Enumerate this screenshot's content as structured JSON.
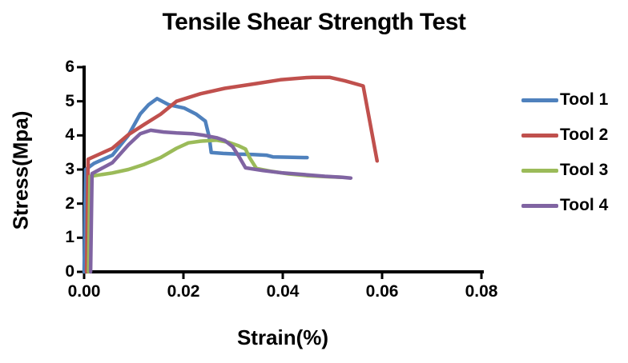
{
  "chart_data": {
    "type": "line",
    "title": "Tensile Shear Strength Test",
    "xlabel": "Strain(%)",
    "ylabel": "Stress(Mpa)",
    "xlim": [
      0,
      0.08
    ],
    "ylim": [
      0,
      6
    ],
    "grid": false,
    "legend_position": "right",
    "x_ticks": {
      "values": [
        0,
        0.02,
        0.04,
        0.06,
        0.08
      ],
      "labels": [
        "0.00",
        "0.02",
        "0.04",
        "0.06",
        "0.08"
      ]
    },
    "y_ticks": {
      "values": [
        0,
        1,
        2,
        3,
        4,
        5,
        6
      ],
      "labels": [
        "0",
        "1",
        "2",
        "3",
        "4",
        "5",
        "6"
      ]
    },
    "axis_color": "#000000",
    "background_color": "#FFFFFF",
    "series": [
      {
        "name": "Tool 1",
        "color": "#4F81BD",
        "points": [
          [
            0.0,
            0.0
          ],
          [
            0.0003,
            3.0
          ],
          [
            0.002,
            3.18
          ],
          [
            0.0057,
            3.42
          ],
          [
            0.0089,
            4.0
          ],
          [
            0.0113,
            4.63
          ],
          [
            0.013,
            4.9
          ],
          [
            0.0147,
            5.08
          ],
          [
            0.017,
            4.9
          ],
          [
            0.0186,
            4.85
          ],
          [
            0.0202,
            4.8
          ],
          [
            0.0226,
            4.62
          ],
          [
            0.0244,
            4.42
          ],
          [
            0.0252,
            3.95
          ],
          [
            0.0256,
            3.5
          ],
          [
            0.028,
            3.47
          ],
          [
            0.031,
            3.45
          ],
          [
            0.034,
            3.44
          ],
          [
            0.0367,
            3.42
          ],
          [
            0.038,
            3.37
          ],
          [
            0.041,
            3.36
          ],
          [
            0.0449,
            3.35
          ]
        ]
      },
      {
        "name": "Tool 2",
        "color": "#C0504D",
        "points": [
          [
            0.0005,
            0.0
          ],
          [
            0.0008,
            3.3
          ],
          [
            0.0057,
            3.62
          ],
          [
            0.0089,
            4.02
          ],
          [
            0.0121,
            4.32
          ],
          [
            0.0154,
            4.62
          ],
          [
            0.0186,
            5.0
          ],
          [
            0.0234,
            5.22
          ],
          [
            0.0283,
            5.38
          ],
          [
            0.0347,
            5.52
          ],
          [
            0.0395,
            5.63
          ],
          [
            0.0444,
            5.69
          ],
          [
            0.046,
            5.7
          ],
          [
            0.0495,
            5.7
          ],
          [
            0.0525,
            5.6
          ],
          [
            0.0562,
            5.45
          ],
          [
            0.059,
            3.25
          ]
        ]
      },
      {
        "name": "Tool 3",
        "color": "#9BBB59",
        "points": [
          [
            0.0009,
            0.0
          ],
          [
            0.0012,
            2.8
          ],
          [
            0.003,
            2.84
          ],
          [
            0.0057,
            2.9
          ],
          [
            0.0089,
            3.0
          ],
          [
            0.0121,
            3.15
          ],
          [
            0.0154,
            3.35
          ],
          [
            0.0186,
            3.62
          ],
          [
            0.021,
            3.78
          ],
          [
            0.0234,
            3.83
          ],
          [
            0.0267,
            3.86
          ],
          [
            0.029,
            3.8
          ],
          [
            0.031,
            3.7
          ],
          [
            0.0325,
            3.6
          ],
          [
            0.0333,
            3.35
          ],
          [
            0.0347,
            3.03
          ],
          [
            0.0375,
            2.95
          ],
          [
            0.0412,
            2.87
          ],
          [
            0.045,
            2.82
          ],
          [
            0.049,
            2.79
          ],
          [
            0.052,
            2.77
          ]
        ]
      },
      {
        "name": "Tool 4",
        "color": "#8064A2",
        "points": [
          [
            0.0013,
            0.0
          ],
          [
            0.0016,
            2.88
          ],
          [
            0.0057,
            3.2
          ],
          [
            0.0089,
            3.72
          ],
          [
            0.0113,
            4.05
          ],
          [
            0.0134,
            4.15
          ],
          [
            0.016,
            4.1
          ],
          [
            0.0186,
            4.07
          ],
          [
            0.0218,
            4.05
          ],
          [
            0.0242,
            4.0
          ],
          [
            0.0267,
            3.93
          ],
          [
            0.0283,
            3.85
          ],
          [
            0.0299,
            3.67
          ],
          [
            0.0311,
            3.4
          ],
          [
            0.0325,
            3.05
          ],
          [
            0.036,
            2.97
          ],
          [
            0.04,
            2.9
          ],
          [
            0.0444,
            2.85
          ],
          [
            0.0485,
            2.8
          ],
          [
            0.052,
            2.77
          ],
          [
            0.0537,
            2.75
          ]
        ]
      }
    ]
  }
}
